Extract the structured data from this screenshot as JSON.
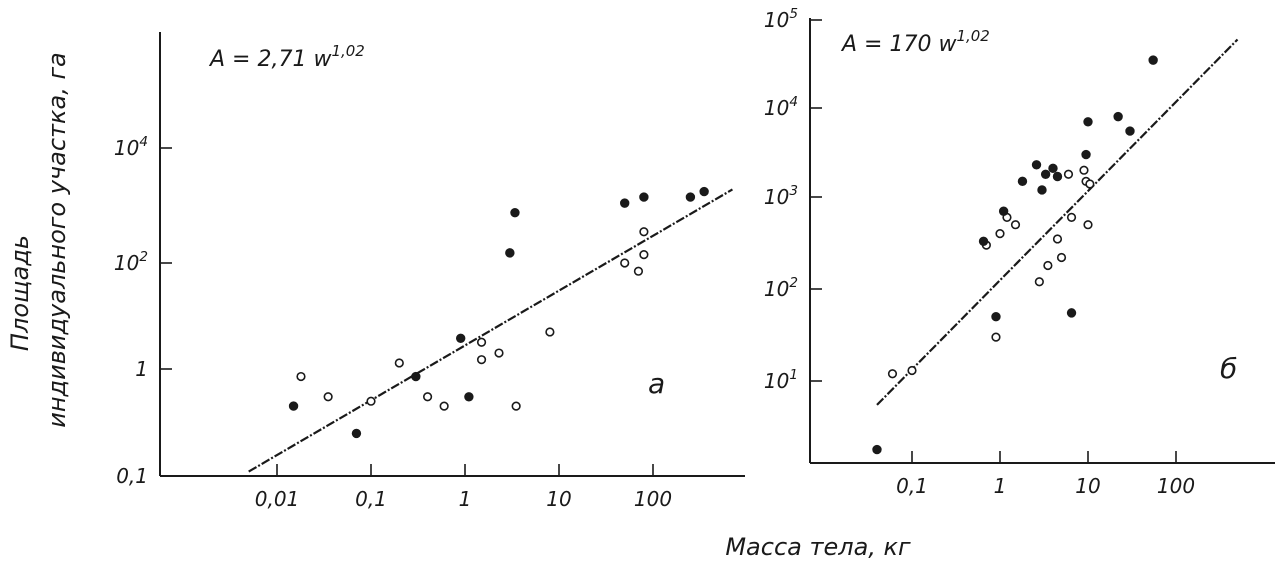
{
  "figure": {
    "ylabel_line1": "Площадь",
    "ylabel_line2": "индивидуального участка, га",
    "xlabel": "Масса  тела, кг"
  },
  "colors": {
    "ink": "#1a1a1a",
    "paper": "#ffffff"
  },
  "chart_data": [
    {
      "type": "scatter",
      "panel_label": "а",
      "equation": "A = 2,71 w^1,02",
      "x_scale": "log",
      "y_scale": "log",
      "xlim": [
        0.003,
        1000
      ],
      "ylim": [
        0.1,
        30000
      ],
      "x_ticks": [
        0.01,
        0.1,
        1,
        10,
        100
      ],
      "x_tick_labels": [
        "0,01",
        "0,1",
        "1",
        "10",
        "100"
      ],
      "y_ticks": [
        0.1,
        1,
        100,
        10000
      ],
      "y_tick_labels": [
        "0,1",
        "1",
        "10^2",
        "10^4"
      ],
      "fit_line": {
        "x": [
          0.005,
          700
        ],
        "y": [
          0.11,
          1900
        ]
      },
      "series": [
        {
          "marker": "open",
          "points": [
            [
              0.018,
              0.85
            ],
            [
              0.035,
              0.55
            ],
            [
              0.1,
              0.5
            ],
            [
              0.2,
              1.3
            ],
            [
              0.4,
              0.55
            ],
            [
              0.6,
              0.45
            ],
            [
              1.5,
              1.5
            ],
            [
              1.5,
              3.2
            ],
            [
              2.3,
              2
            ],
            [
              3.5,
              0.45
            ],
            [
              8,
              5
            ],
            [
              50,
              100
            ],
            [
              70,
              70
            ],
            [
              80,
              350
            ],
            [
              80,
              140
            ]
          ]
        },
        {
          "marker": "filled",
          "points": [
            [
              0.015,
              0.45
            ],
            [
              0.07,
              0.25
            ],
            [
              0.3,
              0.85
            ],
            [
              0.9,
              3.8
            ],
            [
              1.1,
              0.55
            ],
            [
              3,
              150
            ],
            [
              3.4,
              750
            ],
            [
              50,
              1100
            ],
            [
              80,
              1400
            ],
            [
              250,
              1400
            ],
            [
              350,
              1750
            ]
          ]
        }
      ]
    },
    {
      "type": "scatter",
      "panel_label": "б",
      "equation": "A = 170 w^1,02",
      "x_scale": "log",
      "y_scale": "log",
      "xlim": [
        0.02,
        1000
      ],
      "ylim": [
        0.1,
        100000
      ],
      "x_ticks": [
        0.1,
        1,
        10,
        100
      ],
      "x_tick_labels": [
        "0,1",
        "1",
        "10",
        "100"
      ],
      "y_ticks": [
        10,
        100,
        1000,
        10000,
        100000
      ],
      "y_tick_labels": [
        "10^1",
        "10^2",
        "10^3",
        "10^4",
        "10^5"
      ],
      "fit_line": {
        "x": [
          0.04,
          500
        ],
        "y": [
          5.5,
          60000
        ]
      },
      "series": [
        {
          "marker": "open",
          "points": [
            [
              0.06,
              12
            ],
            [
              0.1,
              13
            ],
            [
              0.7,
              300
            ],
            [
              0.9,
              30
            ],
            [
              1,
              400
            ],
            [
              1.2,
              600
            ],
            [
              1.5,
              500
            ],
            [
              2.8,
              120
            ],
            [
              3.5,
              180
            ],
            [
              4.5,
              350
            ],
            [
              5,
              220
            ],
            [
              6,
              1800
            ],
            [
              6.5,
              600
            ],
            [
              9,
              2000
            ],
            [
              9.5,
              1500
            ],
            [
              10,
              500
            ],
            [
              10.5,
              1400
            ]
          ]
        },
        {
          "marker": "filled",
          "points": [
            [
              0.04,
              1.8
            ],
            [
              0.65,
              330
            ],
            [
              0.9,
              50
            ],
            [
              1.1,
              700
            ],
            [
              1.8,
              1500
            ],
            [
              2.6,
              2300
            ],
            [
              3,
              1200
            ],
            [
              3.3,
              1800
            ],
            [
              4,
              2100
            ],
            [
              4.5,
              1700
            ],
            [
              6.5,
              55
            ],
            [
              9.5,
              3000
            ],
            [
              10,
              7000
            ],
            [
              22,
              8000
            ],
            [
              30,
              5500
            ],
            [
              55,
              35000
            ]
          ]
        }
      ]
    }
  ]
}
